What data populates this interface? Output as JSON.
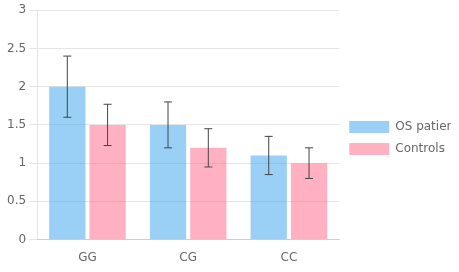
{
  "chart_data": {
    "type": "bar",
    "categories": [
      "GG",
      "CG",
      "CC"
    ],
    "series": [
      {
        "name": "OS patients",
        "values": [
          2.0,
          1.5,
          1.1
        ],
        "errors": [
          0.4,
          0.3,
          0.25
        ]
      },
      {
        "name": "Controls",
        "values": [
          1.5,
          1.2,
          1.0
        ],
        "errors": [
          0.27,
          0.25,
          0.2
        ]
      }
    ],
    "ylim": [
      0,
      3
    ],
    "yticks": [
      0,
      0.5,
      1,
      1.5,
      2,
      2.5,
      3
    ],
    "grid": true,
    "legend": "right"
  }
}
